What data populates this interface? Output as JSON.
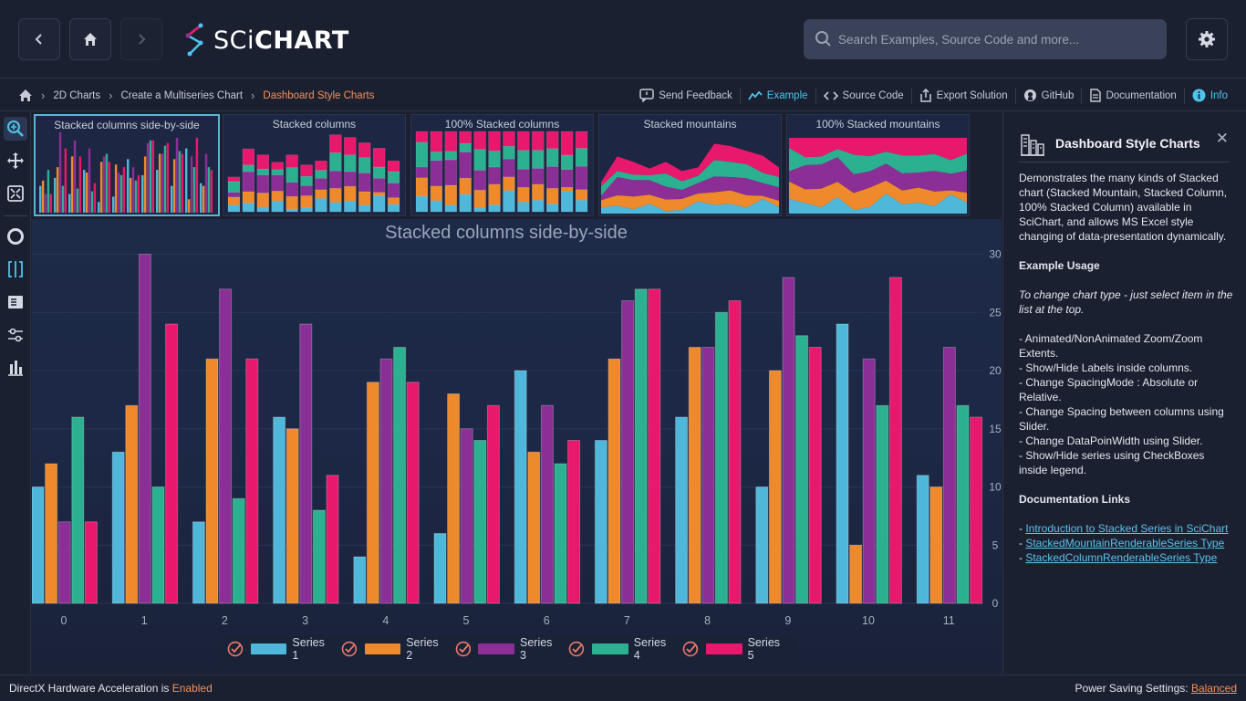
{
  "app": {
    "logo_text_thin": "SCi",
    "logo_text_bold": "CHART",
    "search_placeholder": "Search Examples, Source Code and more..."
  },
  "breadcrumb": {
    "items": [
      "2D Charts",
      "Create a Multiseries Chart",
      "Dashboard Style Charts"
    ]
  },
  "actions": [
    {
      "label": "Send Feedback",
      "icon": "feedback-icon"
    },
    {
      "label": "Example",
      "icon": "chart-line-icon"
    },
    {
      "label": "Source Code",
      "icon": "code-icon"
    },
    {
      "label": "Export Solution",
      "icon": "export-icon"
    },
    {
      "label": "GitHub",
      "icon": "github-icon"
    },
    {
      "label": "Documentation",
      "icon": "doc-icon"
    },
    {
      "label": "Info",
      "icon": "info-icon"
    }
  ],
  "left_tools": [
    "zoom-icon",
    "pan-icon",
    "zoom-extents-icon",
    "rollover-icon",
    "split-icon",
    "legend-icon",
    "settings-sliders-icon",
    "bar-chart-icon"
  ],
  "thumbnails": [
    {
      "title": "Stacked columns side-by-side",
      "kind": "side"
    },
    {
      "title": "Stacked columns",
      "kind": "stacked"
    },
    {
      "title": "100% Stacked columns",
      "kind": "stacked100"
    },
    {
      "title": "Stacked mountains",
      "kind": "mountain"
    },
    {
      "title": "100% Stacked mountains",
      "kind": "mountain100"
    }
  ],
  "chart_data": {
    "type": "bar",
    "title": "Stacked columns side-by-side",
    "categories": [
      "0",
      "1",
      "2",
      "3",
      "4",
      "5",
      "6",
      "7",
      "8",
      "9",
      "10",
      "11"
    ],
    "ylim": [
      0,
      30
    ],
    "yticks": [
      "0",
      "5",
      "10",
      "15",
      "20",
      "25",
      "30"
    ],
    "grid": true,
    "legend_position": "bottom",
    "series": [
      {
        "name": "Series 1",
        "color": "#4fb8da",
        "values": [
          10,
          13,
          7,
          16,
          4,
          6,
          20,
          14,
          16,
          10,
          24,
          11
        ]
      },
      {
        "name": "Series 2",
        "color": "#ee8a2c",
        "values": [
          12,
          17,
          21,
          15,
          19,
          18,
          13,
          21,
          22,
          20,
          5,
          10
        ]
      },
      {
        "name": "Series 3",
        "color": "#8b2f96",
        "values": [
          7,
          30,
          27,
          24,
          21,
          15,
          17,
          26,
          22,
          28,
          21,
          22
        ]
      },
      {
        "name": "Series 4",
        "color": "#2cb190",
        "values": [
          16,
          10,
          9,
          8,
          22,
          14,
          12,
          27,
          25,
          23,
          17,
          17
        ]
      },
      {
        "name": "Series 5",
        "color": "#e8186d",
        "values": [
          7,
          24,
          21,
          11,
          19,
          17,
          14,
          27,
          26,
          22,
          28,
          16
        ]
      }
    ]
  },
  "info_panel": {
    "title": "Dashboard Style Charts",
    "description": "Demonstrates the many kinds of Stacked chart (Stacked Mountain, Stacked Column, 100% Stacked Column) available in SciChart, and allows MS Excel style changing of data-presentation dynamically.",
    "usage_heading": "Example Usage",
    "usage_italic": "To change chart type - just select item in the list at the top.",
    "usage_list": "- Animated/NonAnimated Zoom/Zoom Extents.\n- Show/Hide Labels inside columns.\n- Change SpacingMode : Absolute or Relative.\n- Change Spacing between columns using Slider.\n- Change DataPoinWidth using Slider.\n- Show/Hide series using CheckBoxes inside legend.",
    "links_heading": "Documentation Links",
    "links": [
      "Introduction to Stacked Series in SciChart",
      "StackedMountainRenderableSeries Type",
      "StackedColumnRenderableSeries Type"
    ]
  },
  "status": {
    "left_prefix": "DirectX Hardware Acceleration is ",
    "left_value": "Enabled",
    "right_prefix": "Power Saving Settings: ",
    "right_value": "Balanced"
  }
}
